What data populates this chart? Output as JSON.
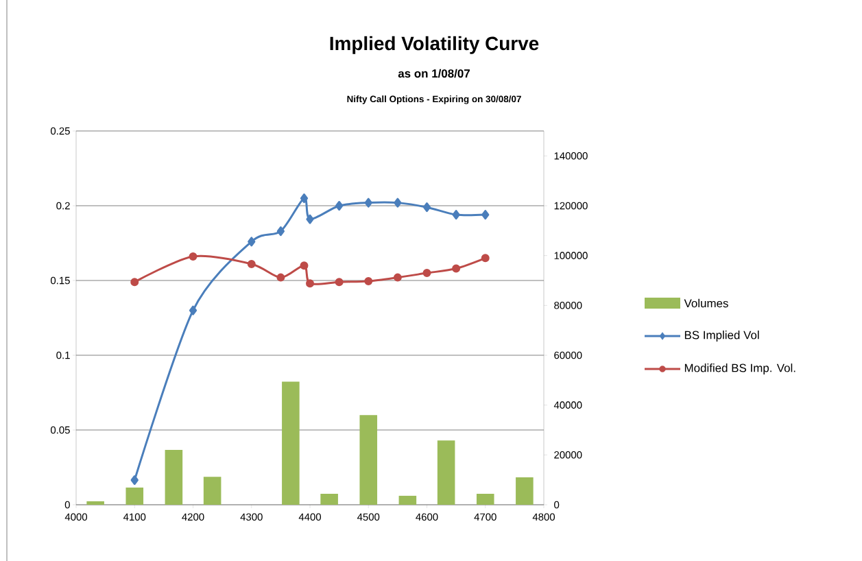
{
  "chart_data": {
    "type": "line",
    "title": "Implied Volatility Curve",
    "subtitle": "as on 1/08/07",
    "annotations": [
      "Nifty Call Options - Expiring on 30/08/07"
    ],
    "xlim": [
      4000,
      4800
    ],
    "xticks": [
      4000,
      4100,
      4200,
      4300,
      4400,
      4500,
      4600,
      4700,
      4800
    ],
    "ylim": [
      0,
      0.25
    ],
    "yticks": [
      0,
      0.05,
      0.1,
      0.15,
      0.2,
      0.25
    ],
    "y2lim": [
      0,
      150000
    ],
    "y2ticks": [
      0,
      20000,
      40000,
      60000,
      80000,
      100000,
      120000,
      140000
    ],
    "grid": "y",
    "legend": "right",
    "series": [
      {
        "name": "Volumes",
        "type": "bar",
        "axis": "y2",
        "color": "#9bbb59",
        "x": [
          4033,
          4100,
          4167,
          4233,
          4300,
          4367,
          4433,
          4500,
          4567,
          4633,
          4700,
          4767
        ],
        "values": [
          1400,
          6900,
          22000,
          11200,
          0,
          49400,
          4400,
          36000,
          3600,
          25800,
          4400,
          11000
        ]
      },
      {
        "name": "BS Implied Vol",
        "marker": "diamond",
        "color": "#4a7ebb",
        "x": [
          4100,
          4200,
          4300,
          4350,
          4390,
          4400,
          4450,
          4500,
          4550,
          4600,
          4650,
          4700
        ],
        "values": [
          0.0165,
          0.13,
          0.176,
          0.183,
          0.205,
          0.191,
          0.2,
          0.202,
          0.202,
          0.199,
          0.194,
          0.194
        ]
      },
      {
        "name": "Modified BS Imp. Vol.",
        "marker": "circle",
        "color": "#be4b48",
        "x": [
          4100,
          4200,
          4300,
          4350,
          4390,
          4400,
          4450,
          4500,
          4550,
          4600,
          4650,
          4700
        ],
        "values": [
          0.149,
          0.166,
          0.161,
          0.152,
          0.16,
          0.148,
          0.149,
          0.1495,
          0.152,
          0.155,
          0.158,
          0.165
        ]
      }
    ]
  }
}
